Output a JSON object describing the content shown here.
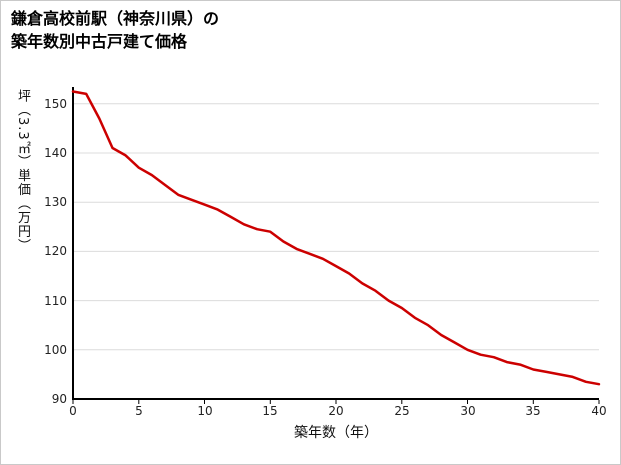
{
  "title": {
    "line1": "鎌倉高校前駅（神奈川県）の",
    "line2": "築年数別中古戸建て価格"
  },
  "chart_data": {
    "type": "line",
    "title": "鎌倉高校前駅（神奈川県）の築年数別中古戸建て価格",
    "xlabel": "築年数（年）",
    "ylabel": "坪（3.3㎡）単価（万円）",
    "x": [
      0,
      1,
      2,
      3,
      4,
      5,
      6,
      7,
      8,
      9,
      10,
      11,
      12,
      13,
      14,
      15,
      16,
      17,
      18,
      19,
      20,
      21,
      22,
      23,
      24,
      25,
      26,
      27,
      28,
      29,
      30,
      31,
      32,
      33,
      34,
      35,
      36,
      37,
      38,
      39,
      40
    ],
    "values": [
      152.5,
      152,
      147,
      141,
      139.5,
      137,
      135.5,
      133.5,
      131.5,
      130.5,
      129.5,
      128.5,
      127,
      125.5,
      124.5,
      124,
      122,
      120.5,
      119.5,
      118.5,
      117,
      115.5,
      113.5,
      112,
      110,
      108.5,
      106.5,
      105,
      103,
      101.5,
      100,
      99,
      98.5,
      97.5,
      97,
      96,
      95.5,
      95,
      94.5,
      93.5,
      93
    ],
    "xlim": [
      0,
      40
    ],
    "ylim": [
      90,
      153
    ],
    "xticks": [
      0,
      5,
      10,
      15,
      20,
      25,
      30,
      35,
      40
    ],
    "yticks": [
      90,
      100,
      110,
      120,
      130,
      140,
      150
    ],
    "grid": true,
    "grid_color": "#dcdcdc",
    "axis_color": "#000000",
    "line_color": "#cc0000",
    "legend": "none"
  }
}
